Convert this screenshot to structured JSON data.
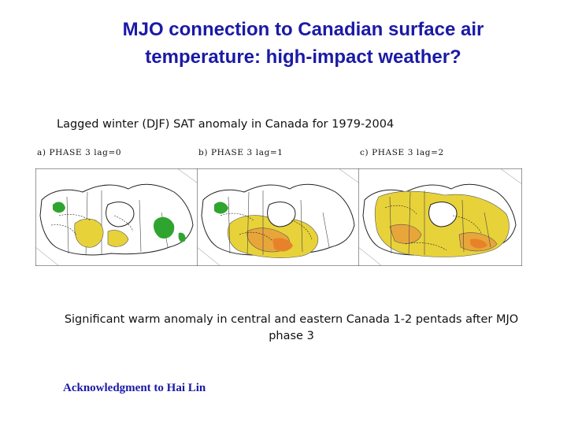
{
  "slide": {
    "title_line1": "MJO connection to Canadian surface air",
    "title_line2": "temperature: high-impact weather?",
    "subtitle": "Lagged winter (DJF) SAT anomaly in Canada for 1979-2004",
    "caption": "Significant warm anomaly in central and eastern Canada 1-2 pentads after MJO phase 3",
    "acknowledgment": "Acknowledgment to Hai Lin"
  },
  "panels": [
    {
      "label": "a) PHASE 3 lag=0",
      "icon": "canada-sat-anomaly-map"
    },
    {
      "label": "b) PHASE 3 lag=1",
      "icon": "canada-sat-anomaly-map"
    },
    {
      "label": "c) PHASE 3 lag=2",
      "icon": "canada-sat-anomaly-map"
    }
  ],
  "colors": {
    "title": "#1a1aa6",
    "cold_anomaly": "#2fa52f",
    "warm_light": "#e8d23a",
    "warm_mid": "#e8a63a",
    "warm_strong": "#e8822a"
  }
}
